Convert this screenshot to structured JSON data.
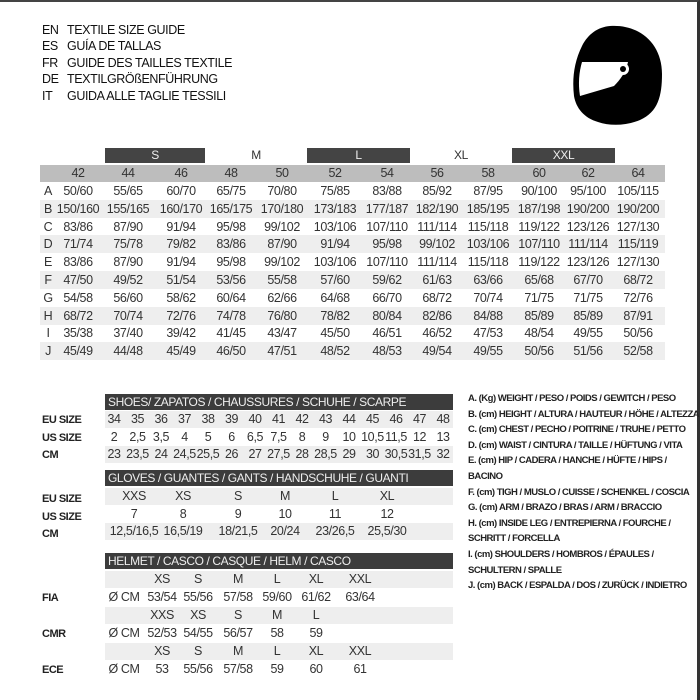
{
  "header": {
    "titles": [
      {
        "code": "EN",
        "text": "TEXTILE SIZE GUIDE"
      },
      {
        "code": "ES",
        "text": "GUÍA DE TALLAS"
      },
      {
        "code": "FR",
        "text": "GUIDE DES TAILLES TEXTILE"
      },
      {
        "code": "DE",
        "text": "TEXTILGRÖßENFÜHRUNG"
      },
      {
        "code": "IT",
        "text": "GUIDA ALLE TAGLIE TESSILI"
      }
    ],
    "icon": "helmet-icon"
  },
  "textile": {
    "size_groups": [
      "S",
      "M",
      "L",
      "XL",
      "XXL"
    ],
    "columns": [
      "42",
      "44",
      "46",
      "48",
      "50",
      "52",
      "54",
      "56",
      "58",
      "60",
      "62",
      "64"
    ],
    "rows": [
      {
        "key": "A",
        "values": [
          "50/60",
          "55/65",
          "60/70",
          "65/75",
          "70/80",
          "75/85",
          "83/88",
          "85/92",
          "87/95",
          "90/100",
          "95/100",
          "105/115"
        ]
      },
      {
        "key": "B",
        "values": [
          "150/160",
          "155/165",
          "160/170",
          "165/175",
          "170/180",
          "173/183",
          "177/187",
          "182/190",
          "185/195",
          "187/198",
          "190/200",
          "190/200"
        ]
      },
      {
        "key": "C",
        "values": [
          "83/86",
          "87/90",
          "91/94",
          "95/98",
          "99/102",
          "103/106",
          "107/110",
          "111/114",
          "115/118",
          "119/122",
          "123/126",
          "127/130"
        ]
      },
      {
        "key": "D",
        "values": [
          "71/74",
          "75/78",
          "79/82",
          "83/86",
          "87/90",
          "91/94",
          "95/98",
          "99/102",
          "103/106",
          "107/110",
          "111/114",
          "115/119"
        ]
      },
      {
        "key": "E",
        "values": [
          "83/86",
          "87/90",
          "91/94",
          "95/98",
          "99/102",
          "103/106",
          "107/110",
          "111/114",
          "115/118",
          "119/122",
          "123/126",
          "127/130"
        ]
      },
      {
        "key": "F",
        "values": [
          "47/50",
          "49/52",
          "51/54",
          "53/56",
          "55/58",
          "57/60",
          "59/62",
          "61/63",
          "63/66",
          "65/68",
          "67/70",
          "68/72"
        ]
      },
      {
        "key": "G",
        "values": [
          "54/58",
          "56/60",
          "58/62",
          "60/64",
          "62/66",
          "64/68",
          "66/70",
          "68/72",
          "70/74",
          "71/75",
          "71/75",
          "72/76"
        ]
      },
      {
        "key": "H",
        "values": [
          "68/72",
          "70/74",
          "72/76",
          "74/78",
          "76/80",
          "78/82",
          "80/84",
          "82/86",
          "84/88",
          "85/89",
          "85/89",
          "87/91"
        ]
      },
      {
        "key": "I",
        "values": [
          "35/38",
          "37/40",
          "39/42",
          "41/45",
          "43/47",
          "45/50",
          "46/51",
          "46/52",
          "47/53",
          "48/54",
          "49/55",
          "50/56"
        ]
      },
      {
        "key": "J",
        "values": [
          "45/49",
          "44/48",
          "45/49",
          "46/50",
          "47/51",
          "48/52",
          "48/53",
          "49/54",
          "49/55",
          "50/56",
          "51/56",
          "52/58"
        ]
      }
    ]
  },
  "shoes": {
    "title": "SHOES/ ZAPATOS / CHAUSSURES / SCHUHE / SCARPE",
    "rows": [
      {
        "label": "EU SIZE",
        "values": [
          "34",
          "35",
          "36",
          "37",
          "38",
          "39",
          "40",
          "41",
          "42",
          "43",
          "44",
          "45",
          "46",
          "47",
          "48"
        ]
      },
      {
        "label": "US SIZE",
        "values": [
          "2",
          "2,5",
          "3,5",
          "4",
          "5",
          "6",
          "6,5",
          "7,5",
          "8",
          "9",
          "10",
          "10,5",
          "11,5",
          "12",
          "13"
        ]
      },
      {
        "label": "CM",
        "values": [
          "23",
          "23,5",
          "24",
          "24,5",
          "25,5",
          "26",
          "27",
          "27,5",
          "28",
          "28,5",
          "29",
          "30",
          "30,5",
          "31,5",
          "32"
        ]
      }
    ]
  },
  "gloves": {
    "title": "GLOVES / GUANTES / GANTS / HANDSCHUHE / GUANTI",
    "rows": [
      {
        "label": "EU SIZE",
        "values": [
          "XXS",
          "XS",
          "S",
          "M",
          "L",
          "XL"
        ]
      },
      {
        "label": "US SIZE",
        "values": [
          "7",
          "8",
          "9",
          "10",
          "11",
          "12"
        ]
      },
      {
        "label": "CM",
        "values": [
          "12,5/16,5",
          "16,5/19",
          "18/21,5",
          "20/24",
          "23/26,5",
          "25,5/30"
        ]
      }
    ]
  },
  "helmet": {
    "title": "HELMET / CASCO / CASQUE / HELM / CASCO",
    "unit": "Ø CM",
    "standards": [
      {
        "label": "FIA",
        "sizes": [
          "XS",
          "S",
          "M",
          "L",
          "XL",
          "XXL"
        ],
        "values": [
          "53/54",
          "55/56",
          "57/58",
          "59/60",
          "61/62",
          "63/64"
        ]
      },
      {
        "label": "CMR",
        "sizes": [
          "XXS",
          "XS",
          "S",
          "M",
          "L"
        ],
        "values": [
          "52/53",
          "54/55",
          "56/57",
          "58",
          "59"
        ]
      },
      {
        "label": "ECE",
        "sizes": [
          "XS",
          "S",
          "M",
          "L",
          "XL",
          "XXL"
        ],
        "values": [
          "53",
          "55/56",
          "57/58",
          "59",
          "60",
          "61"
        ]
      }
    ]
  },
  "legend": [
    "A. (Kg) WEIGHT / PESO / POIDS / GEWITCH / PESO",
    "B. (cm) HEIGHT / ALTURA / HAUTEUR / HÖHE / ALTEZZA",
    "C. (cm) CHEST / PECHO / POITRINE / TRUHE / PETTO",
    "D. (cm) WAIST / CINTURA / TAILLE / HÜFTUNG / VITA",
    "E. (cm) HIP / CADERA / HANCHE / HÜFTE / HIPS / BACINO",
    "F. (cm) TIGH / MUSLO / CUISSE / SCHENKEL / COSCIA",
    "G. (cm) ARM / BRAZO / BRAS / ARM / BRACCIO",
    "H. (cm) INSIDE LEG / ENTREPIERNA / FOURCHE /",
    "SCHRITT / FORCELLA",
    "I. (cm) SHOULDERS / HOMBROS / ÉPAULES /",
    "SCHULTERN / SPALLE",
    "J. (cm) BACK / ESPALDA / DOS / ZURÜCK / INDIETRO"
  ]
}
